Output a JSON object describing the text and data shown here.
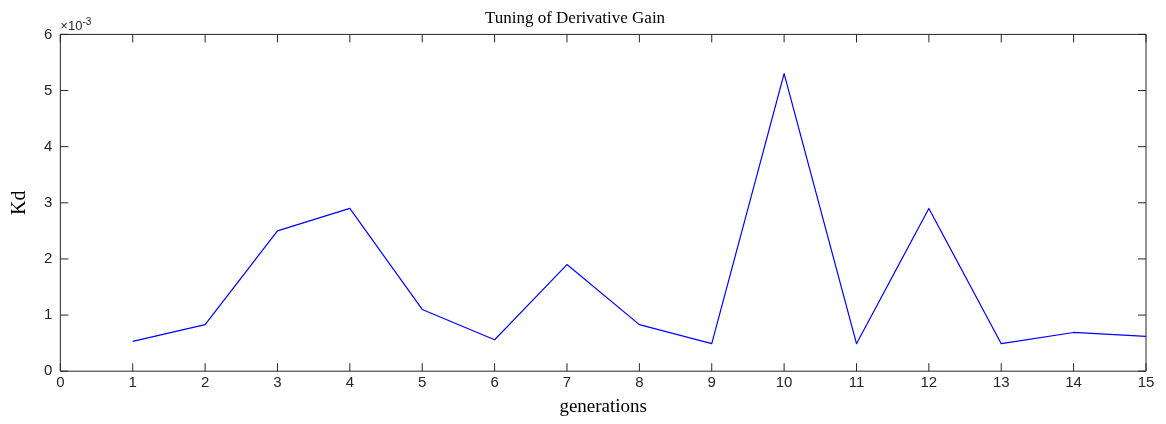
{
  "chart_data": {
    "type": "line",
    "title": "Tuning of Derivative Gain",
    "xlabel": "generations",
    "ylabel": "Kd",
    "annotations": [
      "×10$^{-3}$"
    ],
    "x": [
      1,
      2,
      3,
      4,
      5,
      6,
      7,
      8,
      9,
      10,
      11,
      12,
      13,
      14,
      15
    ],
    "series": [
      {
        "color": "#0000ff",
        "values": [
          0.53,
          0.83,
          2.5,
          2.9,
          1.1,
          0.56,
          1.9,
          0.83,
          0.49,
          5.3,
          0.49,
          2.9,
          0.49,
          0.69,
          0.62
        ]
      }
    ],
    "xlim": [
      0,
      15
    ],
    "xticks": [
      0,
      1,
      2,
      3,
      4,
      5,
      6,
      7,
      8,
      9,
      10,
      11,
      12,
      13,
      14,
      15
    ],
    "ylim": [
      0,
      6
    ],
    "yticks": [
      0,
      1,
      2,
      3,
      4,
      5,
      6
    ],
    "grid": false,
    "legend": false,
    "marker": "none",
    "line_style": "solid"
  }
}
